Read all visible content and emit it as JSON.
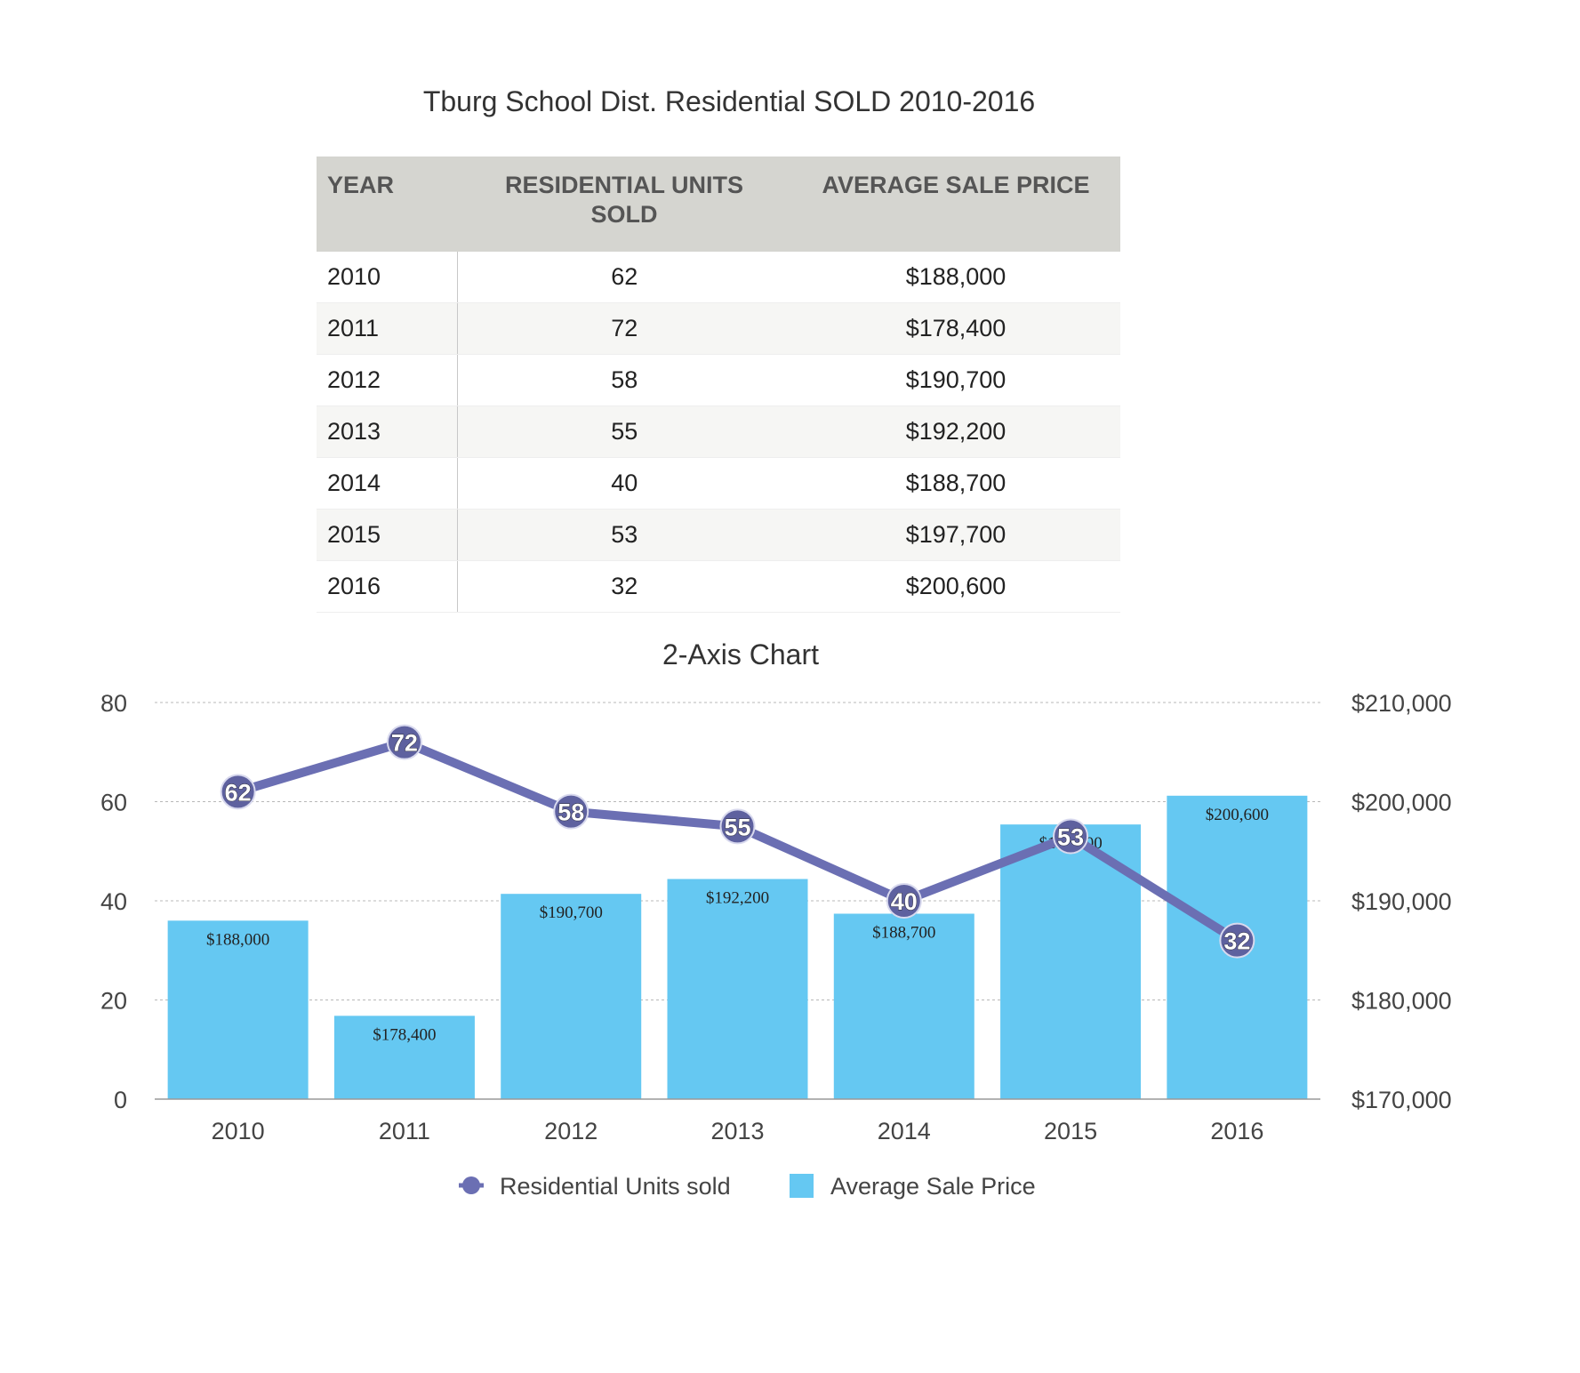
{
  "title": "Tburg School Dist. Residential SOLD  2010-2016",
  "table": {
    "headers": [
      "YEAR",
      "RESIDENTIAL UNITS\nSOLD",
      "AVERAGE SALE PRICE"
    ],
    "rows": [
      {
        "year": "2010",
        "units": "62",
        "price": "$188,000"
      },
      {
        "year": "2011",
        "units": "72",
        "price": "$178,400"
      },
      {
        "year": "2012",
        "units": "58",
        "price": "$190,700"
      },
      {
        "year": "2013",
        "units": "55",
        "price": "$192,200"
      },
      {
        "year": "2014",
        "units": "40",
        "price": "$188,700"
      },
      {
        "year": "2015",
        "units": "53",
        "price": "$197,700"
      },
      {
        "year": "2016",
        "units": "32",
        "price": "$200,600"
      }
    ]
  },
  "chart_data": {
    "type": "bar",
    "title": "2-Axis Chart",
    "categories": [
      "2010",
      "2011",
      "2012",
      "2013",
      "2014",
      "2015",
      "2016"
    ],
    "series": [
      {
        "name": "Residential Units sold",
        "type": "line",
        "axis": "left",
        "values": [
          62,
          72,
          58,
          55,
          40,
          53,
          32
        ],
        "color": "#6b6fb3"
      },
      {
        "name": "Average Sale Price",
        "type": "bar",
        "axis": "right",
        "values": [
          188000,
          178400,
          190700,
          192200,
          188700,
          197700,
          200600
        ],
        "labels": [
          "$188,000",
          "$178,400",
          "$190,700",
          "$192,200",
          "$188,700",
          "$197,700",
          "$200,600"
        ],
        "color": "#65c8f2"
      }
    ],
    "y_left": {
      "range": [
        0,
        80
      ],
      "ticks": [
        "0",
        "20",
        "40",
        "60",
        "80"
      ]
    },
    "y_right": {
      "range": [
        170000,
        210000
      ],
      "ticks": [
        "$170,000",
        "$180,000",
        "$190,000",
        "$200,000",
        "$210,000"
      ]
    },
    "grid": true,
    "legend": "bottom"
  }
}
